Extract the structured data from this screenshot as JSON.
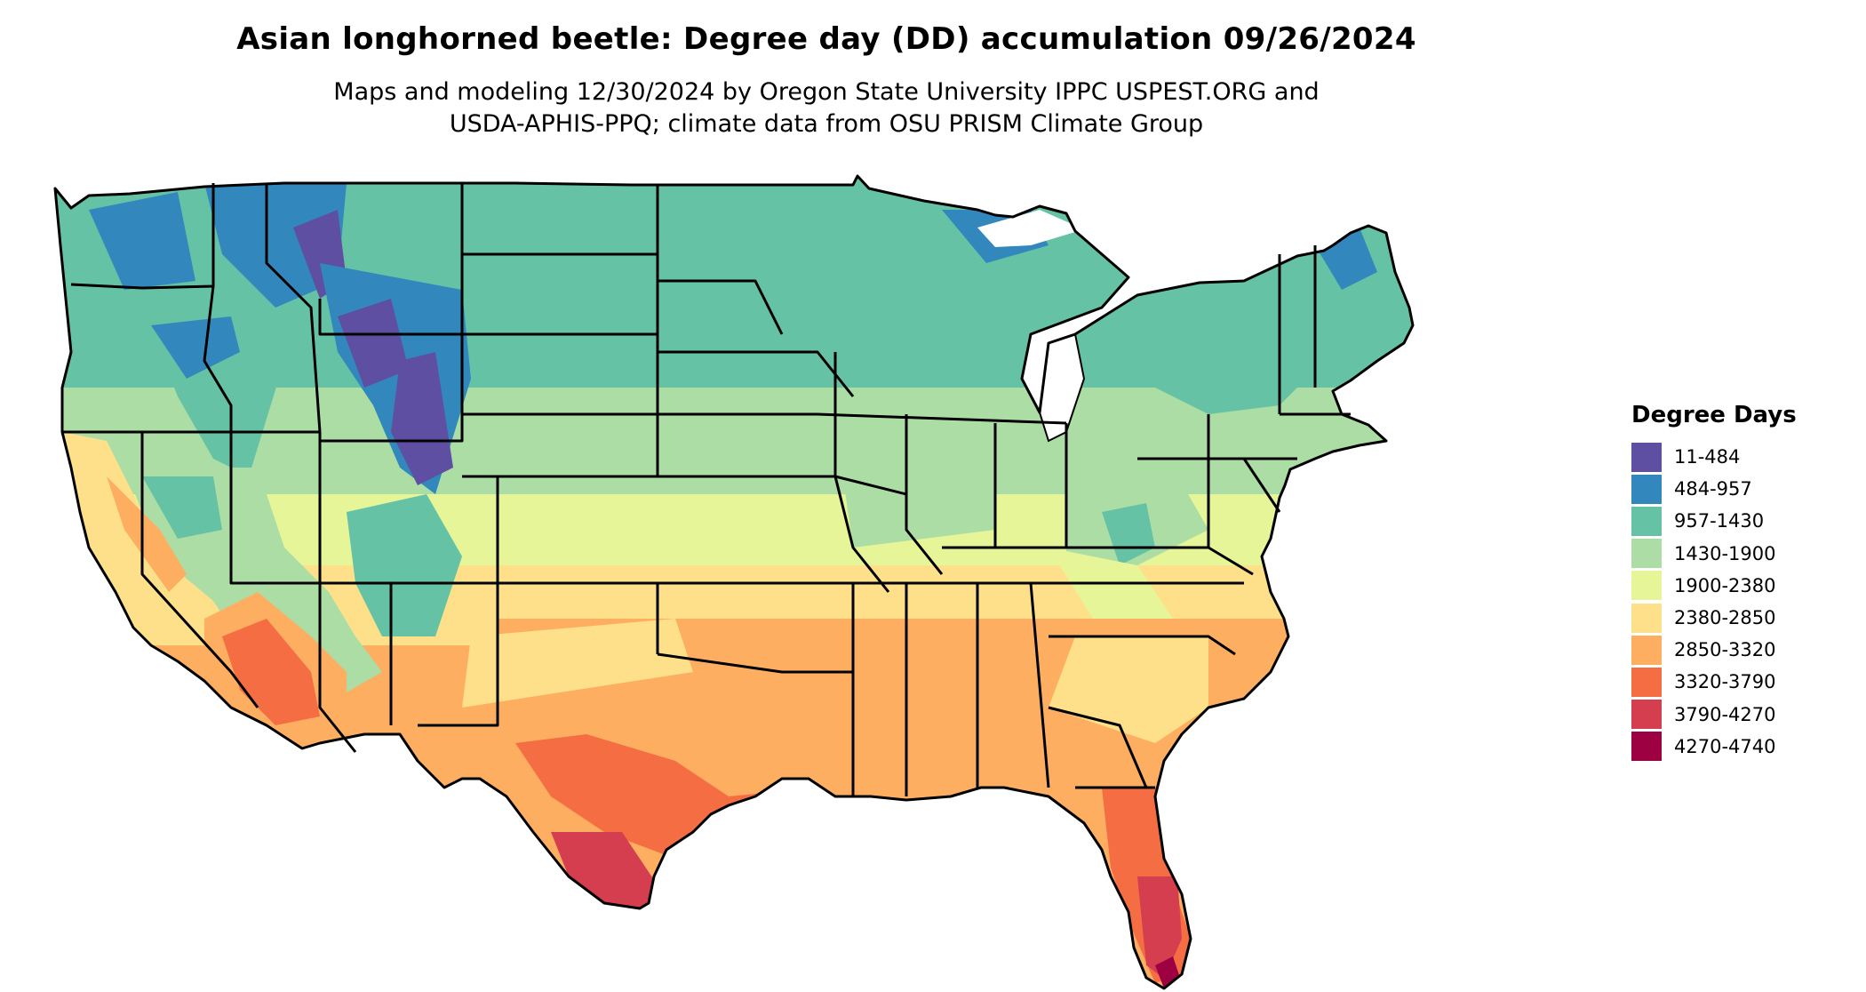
{
  "title": "Asian longhorned beetle: Degree day (DD) accumulation 09/26/2024",
  "subtitle_lines": [
    "Maps and modeling 12/30/2024 by Oregon State University IPPC USPEST.ORG and",
    "USDA-APHIS-PPQ; climate data from OSU PRISM Climate Group"
  ],
  "legend": {
    "title": "Degree Days",
    "items": [
      {
        "label": "11-484",
        "color": "#5e4fa2"
      },
      {
        "label": "484-957",
        "color": "#3288bd"
      },
      {
        "label": "957-1430",
        "color": "#66c2a5"
      },
      {
        "label": "1430-1900",
        "color": "#abdda4"
      },
      {
        "label": "1900-2380",
        "color": "#e6f598"
      },
      {
        "label": "2380-2850",
        "color": "#fee08b"
      },
      {
        "label": "2850-3320",
        "color": "#fdae61"
      },
      {
        "label": "3320-3790",
        "color": "#f46d43"
      },
      {
        "label": "3790-4270",
        "color": "#d53e4f"
      },
      {
        "label": "4270-4740",
        "color": "#9e0142"
      }
    ]
  },
  "map": {
    "region": "contiguous-united-states",
    "boundaries": "state-outlines",
    "state_outline_color": "#000000"
  }
}
